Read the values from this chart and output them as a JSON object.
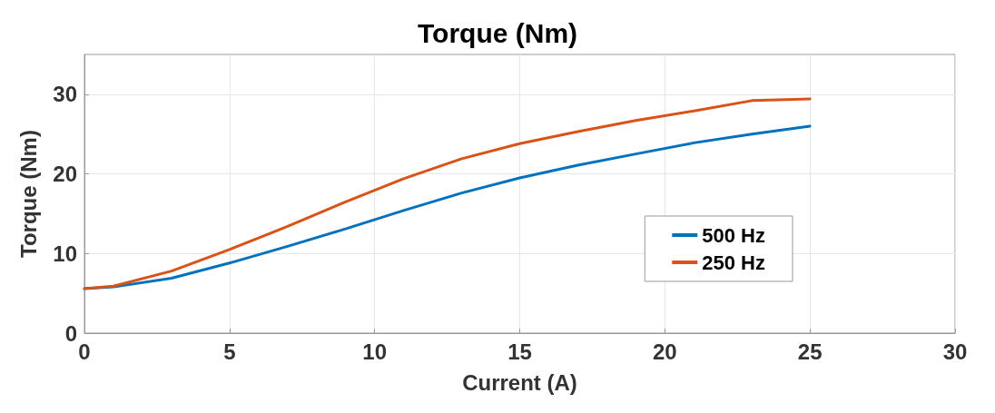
{
  "chart_data": {
    "type": "line",
    "title": "Torque (Nm)",
    "xlabel": "Current (A)",
    "ylabel": "Torque (Nm)",
    "x": [
      0,
      1,
      3,
      5,
      7,
      9,
      11,
      13,
      15,
      17,
      19,
      21,
      23,
      25
    ],
    "series": [
      {
        "name": "500 Hz",
        "color": "#0072bd",
        "values": [
          5.6,
          5.8,
          6.9,
          8.8,
          10.9,
          13.1,
          15.4,
          17.6,
          19.5,
          21.1,
          22.5,
          23.9,
          25.0,
          26.0
        ]
      },
      {
        "name": "250 Hz",
        "color": "#d95319",
        "values": [
          5.6,
          5.9,
          7.8,
          10.5,
          13.4,
          16.5,
          19.4,
          21.9,
          23.8,
          25.3,
          26.7,
          27.9,
          29.2,
          29.4
        ]
      }
    ],
    "xlim": [
      0,
      30
    ],
    "xticks": [
      0,
      5,
      10,
      15,
      20,
      25,
      30
    ],
    "ylim": [
      0,
      35
    ],
    "yticks": [
      0,
      10,
      20,
      30
    ],
    "grid": true,
    "legend": "right",
    "marker": "none",
    "line_style": "solid"
  }
}
